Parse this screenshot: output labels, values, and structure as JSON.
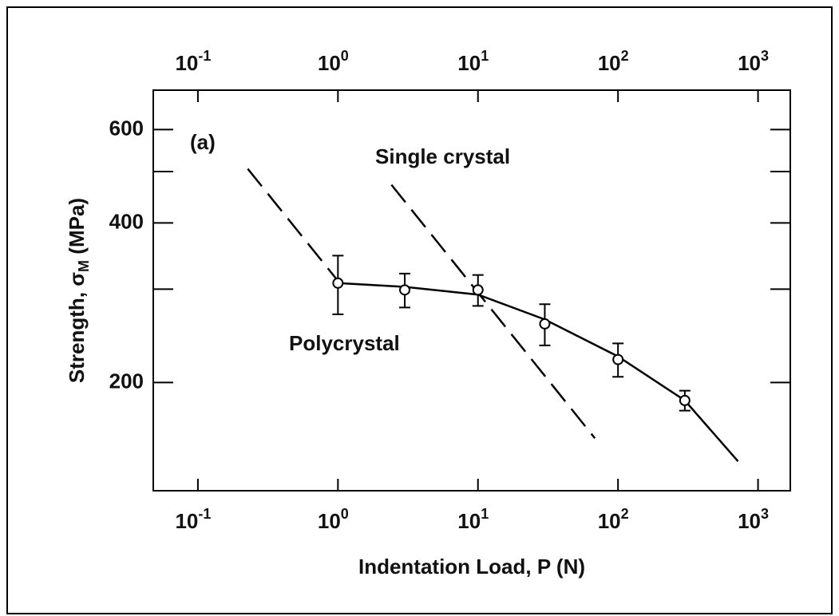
{
  "chart_data": {
    "type": "scatter",
    "xlabel": "Indentation Load, P (N)",
    "ylabel": [
      "Strength, σ",
      "M",
      " (MPa)"
    ],
    "annotations": [
      "(a)",
      "Single crystal",
      "Polycrystal"
    ],
    "xscale": "log",
    "yscale": "log",
    "xlim": [
      0.048,
      1700
    ],
    "ylim": [
      125,
      712
    ],
    "xticks": [
      {
        "value": 0.1,
        "label": "10",
        "exponent": "-1"
      },
      {
        "value": 1,
        "label": "10",
        "exponent": "0"
      },
      {
        "value": 10,
        "label": "10",
        "exponent": "1"
      },
      {
        "value": 100,
        "label": "10",
        "exponent": "2"
      },
      {
        "value": 1000,
        "label": "10",
        "exponent": "3"
      }
    ],
    "yticks": [
      200,
      400,
      600
    ],
    "yminor_ticks": [
      300,
      500
    ],
    "x": [
      1,
      3,
      10,
      30,
      100,
      300
    ],
    "values": [
      308,
      299,
      299,
      258,
      221,
      185
    ],
    "errors": [
      39,
      22,
      20,
      23,
      16,
      8
    ],
    "color": "#000000",
    "lines": [
      {
        "style": "solid",
        "x": [
          1,
          3,
          10,
          30,
          100,
          300,
          720
        ],
        "values": [
          308,
          303,
          293,
          263,
          224,
          185,
          142
        ]
      },
      {
        "style": "dashed",
        "x": [
          0.227,
          1
        ],
        "values": [
          506,
          311
        ]
      },
      {
        "style": "dashed",
        "x": [
          2.41,
          68.4
        ],
        "values": [
          472,
          157
        ]
      }
    ]
  }
}
